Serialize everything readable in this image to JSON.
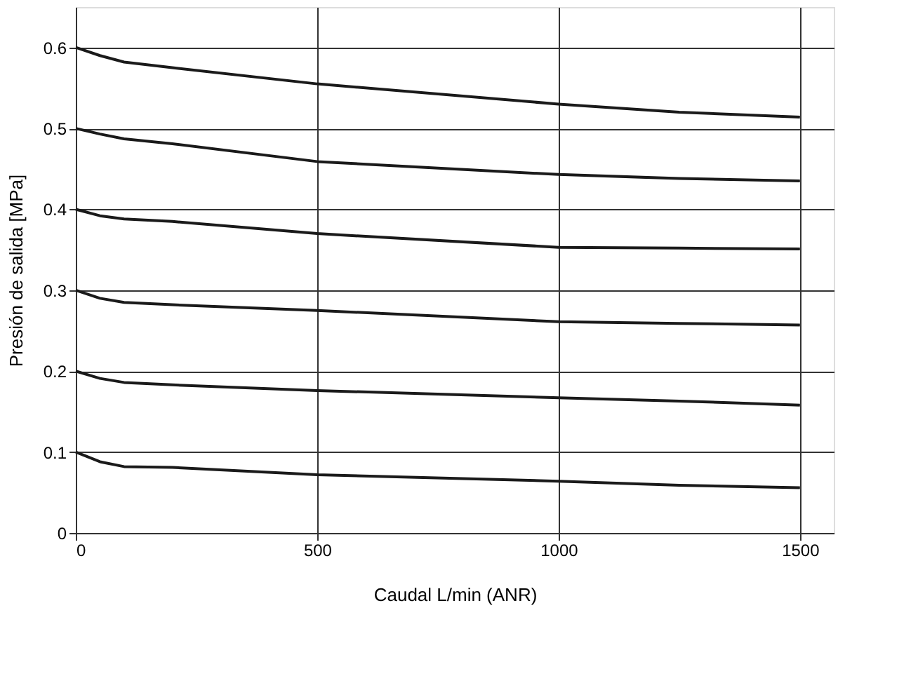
{
  "chart_data": {
    "type": "line",
    "xlabel": "Caudal L/min (ANR)",
    "ylabel": "Presión de salida [MPa]",
    "x": [
      0,
      50,
      100,
      200,
      500,
      1000,
      1250,
      1500
    ],
    "series": [
      {
        "color": "#1a1a1a",
        "values": [
          0.6,
          0.59,
          0.582,
          0.575,
          0.555,
          0.53,
          0.52,
          0.514
        ]
      },
      {
        "color": "#1a1a1a",
        "values": [
          0.5,
          0.493,
          0.487,
          0.481,
          0.459,
          0.443,
          0.438,
          0.435
        ]
      },
      {
        "color": "#1a1a1a",
        "values": [
          0.4,
          0.392,
          0.388,
          0.385,
          0.37,
          0.353,
          0.352,
          0.351
        ]
      },
      {
        "color": "#1a1a1a",
        "values": [
          0.3,
          0.29,
          0.285,
          0.282,
          0.275,
          0.261,
          0.259,
          0.257
        ]
      },
      {
        "color": "#1a1a1a",
        "values": [
          0.2,
          0.191,
          0.186,
          0.183,
          0.176,
          0.167,
          0.163,
          0.158
        ]
      },
      {
        "color": "#1a1a1a",
        "values": [
          0.1,
          0.088,
          0.082,
          0.081,
          0.072,
          0.064,
          0.059,
          0.056
        ]
      }
    ],
    "xlim": [
      0,
      1570
    ],
    "ylim": [
      0,
      0.65
    ],
    "xticks": [
      0,
      500,
      1000,
      1500
    ],
    "yticks": [
      0,
      0.1,
      0.2,
      0.3,
      0.4,
      0.5,
      0.6
    ],
    "grid": true,
    "legend": false,
    "marker": "none",
    "line_style": "solid"
  }
}
